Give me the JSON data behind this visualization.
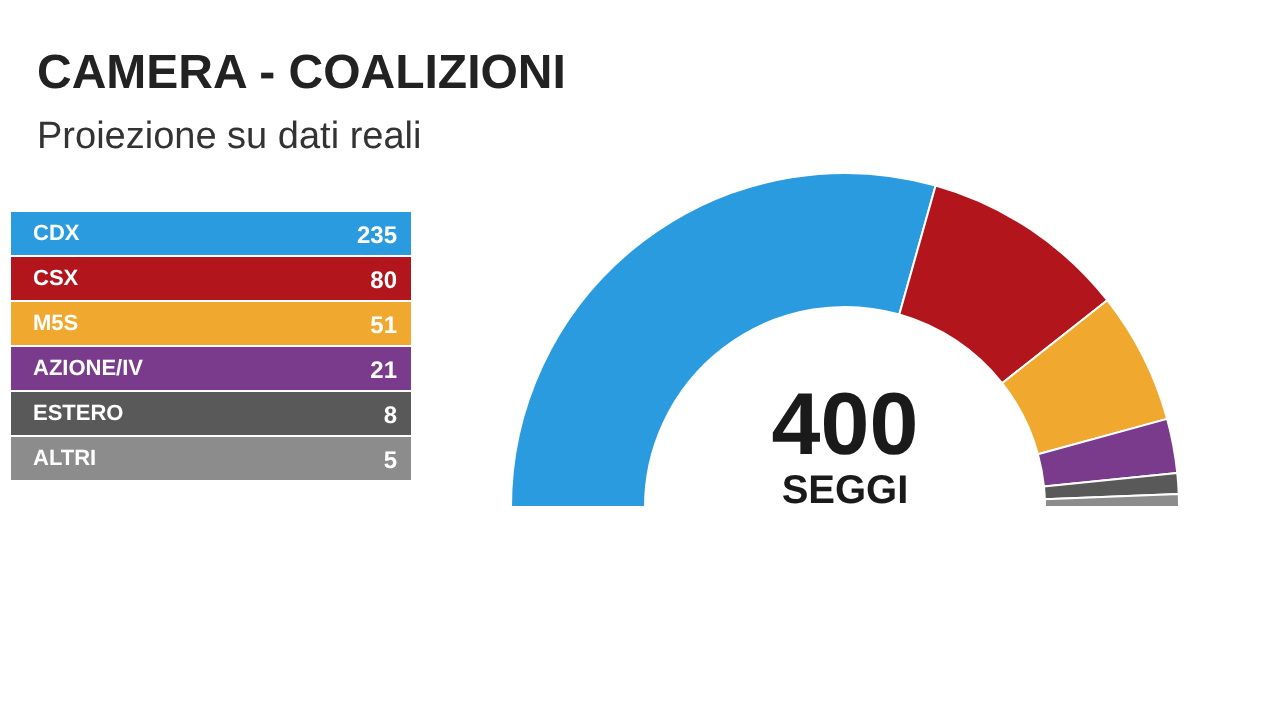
{
  "chart_data": {
    "type": "donut",
    "title": "CAMERA - COALIZIONI",
    "subtitle": "Proiezione su dati reali",
    "categories": [
      "CDX",
      "CSX",
      "M5S",
      "AZIONE/IV",
      "ESTERO",
      "ALTRI"
    ],
    "values": [
      235,
      80,
      51,
      21,
      8,
      5
    ],
    "colors": [
      "#2b9be0",
      "#b3151c",
      "#f0a92e",
      "#7a3b8c",
      "#595959",
      "#8c8c8c"
    ],
    "data_labels": true,
    "legend": "left",
    "annotations": [
      "400",
      "SEGGI"
    ]
  }
}
